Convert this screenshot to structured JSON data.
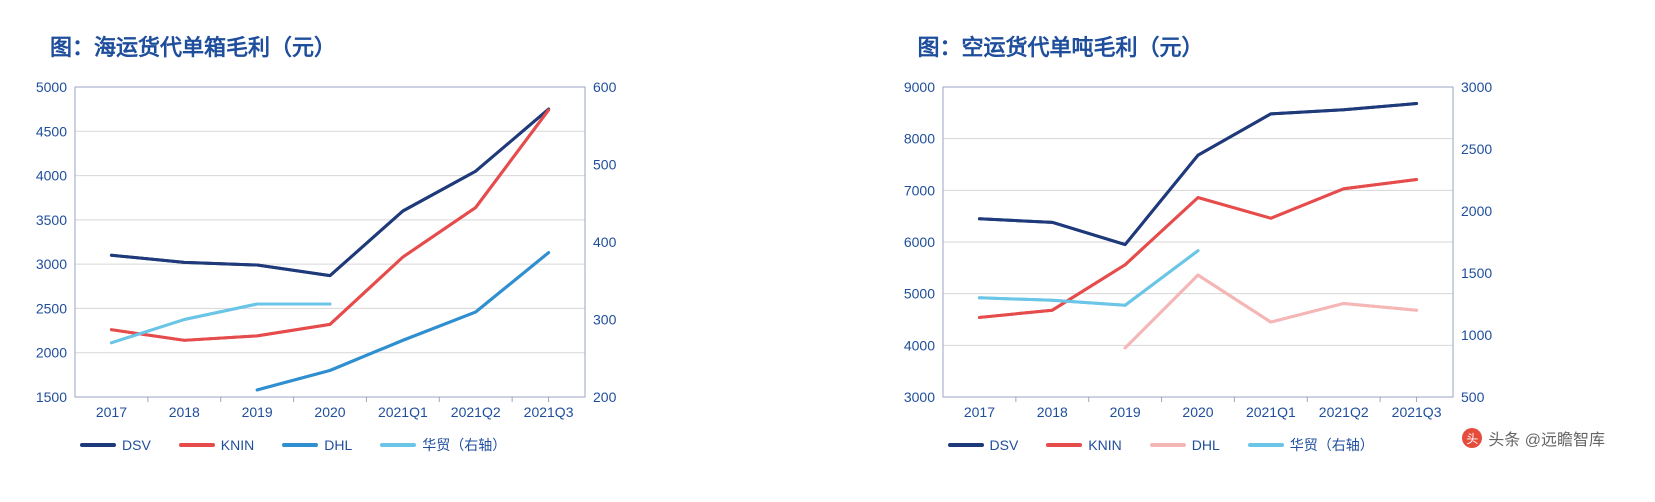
{
  "watermark": {
    "label": "头条 @远瞻智库",
    "icon": "头"
  },
  "charts": [
    {
      "title": "图：海运货代单箱毛利（元）",
      "categories": [
        "2017",
        "2018",
        "2019",
        "2020",
        "2021Q1",
        "2021Q2",
        "2021Q3"
      ],
      "left_axis": {
        "min": 1500,
        "max": 5000,
        "step": 500,
        "ticks": [
          1500,
          2000,
          2500,
          3000,
          3500,
          4000,
          4500,
          5000
        ]
      },
      "right_axis": {
        "min": 200,
        "max": 600,
        "step": 100,
        "ticks": [
          200,
          300,
          400,
          500,
          600
        ]
      },
      "grid_color": "#d7d7d7",
      "border_color": "#9aa6c4",
      "label_color": "#1f4e9c",
      "label_fontsize": 14,
      "plot_bg": "#ffffff",
      "line_width": 3,
      "series": [
        {
          "name": "DSV",
          "color": "#1f3a7a",
          "axis": "left",
          "values": [
            3100,
            3020,
            2990,
            2870,
            3600,
            4050,
            4750
          ]
        },
        {
          "name": "KNIN",
          "color": "#e64c4c",
          "axis": "left",
          "values": [
            2260,
            2140,
            2190,
            2320,
            3080,
            3640,
            4740
          ]
        },
        {
          "name": "DHL",
          "color": "#2f8fd0",
          "axis": "left",
          "values": [
            null,
            null,
            1580,
            1800,
            2140,
            2460,
            3130
          ]
        },
        {
          "name": "华贸（右轴）",
          "color": "#6bc5e6",
          "axis": "right",
          "values": [
            270,
            300,
            320,
            320,
            null,
            null,
            null
          ]
        }
      ]
    },
    {
      "title": "图：空运货代单吨毛利（元）",
      "categories": [
        "2017",
        "2018",
        "2019",
        "2020",
        "2021Q1",
        "2021Q2",
        "2021Q3"
      ],
      "left_axis": {
        "min": 3000,
        "max": 9000,
        "step": 1000,
        "ticks": [
          3000,
          4000,
          5000,
          6000,
          7000,
          8000,
          9000
        ]
      },
      "right_axis": {
        "min": 500,
        "max": 3000,
        "step": 500,
        "ticks": [
          500,
          1000,
          1500,
          2000,
          2500,
          3000
        ]
      },
      "grid_color": "#d7d7d7",
      "border_color": "#9aa6c4",
      "label_color": "#1f4e9c",
      "label_fontsize": 14,
      "plot_bg": "#ffffff",
      "line_width": 3,
      "series": [
        {
          "name": "DSV",
          "color": "#1f3a7a",
          "axis": "left",
          "values": [
            6450,
            6380,
            5950,
            7680,
            8480,
            8560,
            8680
          ]
        },
        {
          "name": "KNIN",
          "color": "#e64c4c",
          "axis": "left",
          "values": [
            4540,
            4680,
            5560,
            6860,
            6460,
            7030,
            7210
          ]
        },
        {
          "name": "DHL",
          "color": "#f5b6b6",
          "axis": "left",
          "values": [
            null,
            null,
            3950,
            5360,
            4450,
            4810,
            4680
          ]
        },
        {
          "name": "华贸（右轴）",
          "color": "#6bc5e6",
          "axis": "right",
          "values": [
            1300,
            1280,
            1240,
            1680,
            null,
            null,
            null
          ]
        }
      ]
    }
  ]
}
